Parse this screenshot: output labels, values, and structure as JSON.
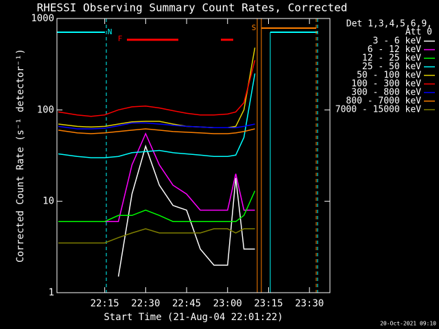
{
  "chart_data": {
    "type": "line",
    "title": "RHESSI Observing Summary Count Rates, Corrected",
    "x_label": "Start Time (21-Aug-04 22:01:22)",
    "y_label": "Corrected Count Rate (s⁻¹ detector⁻¹)",
    "legend_header": [
      "Det 1,3,4,5,6,9,",
      "Att 0"
    ],
    "footer": "20-Oct-2021 09:10",
    "log_scale": true,
    "annotations": [
      {
        "text": "N",
        "color": "#00ffff"
      },
      {
        "text": "F",
        "color": "#ff0000"
      },
      {
        "text": "S",
        "color": "#ff8000"
      }
    ],
    "xlim": [
      -2.5,
      97.5
    ],
    "xticks": [
      {
        "value": 15,
        "label": "22:15"
      },
      {
        "value": 30,
        "label": "22:30"
      },
      {
        "value": 45,
        "label": "22:45"
      },
      {
        "value": 60,
        "label": "23:00"
      },
      {
        "value": 75,
        "label": "23:15"
      },
      {
        "value": 90,
        "label": "23:30"
      }
    ],
    "ylim": [
      1,
      1000
    ],
    "yticks": [
      1,
      10,
      100,
      1000
    ],
    "x": [
      -2,
      5,
      10,
      15,
      20,
      25,
      30,
      35,
      40,
      45,
      50,
      55,
      60,
      63,
      66,
      70
    ],
    "series": [
      {
        "name": "3 - 6 keV",
        "color": "#ffffff",
        "values": [
          null,
          null,
          null,
          null,
          1.5,
          12,
          40,
          15,
          9,
          8,
          3,
          2,
          2,
          18,
          3,
          3
        ]
      },
      {
        "name": "6 - 12 keV",
        "color": "#ff00ff",
        "values": [
          6,
          6,
          6,
          6,
          6,
          25,
          55,
          25,
          15,
          12,
          8,
          8,
          8,
          20,
          8,
          8
        ]
      },
      {
        "name": "12 - 25 keV",
        "color": "#00ff00",
        "values": [
          6,
          6,
          6,
          6,
          7,
          7,
          8,
          7,
          6,
          6,
          6,
          6,
          6,
          6,
          7,
          13
        ]
      },
      {
        "name": "25 - 50 keV",
        "color": "#00ffff",
        "values": [
          33,
          31,
          30,
          30,
          31,
          34,
          35,
          36,
          34,
          33,
          32,
          31,
          31,
          32,
          50,
          250
        ]
      },
      {
        "name": "50 - 100 keV",
        "color": "#e0d000",
        "values": [
          70,
          66,
          65,
          66,
          70,
          74,
          75,
          75,
          70,
          66,
          65,
          64,
          64,
          66,
          100,
          480
        ]
      },
      {
        "name": "100 - 300 keV",
        "color": "#ff0000",
        "values": [
          95,
          88,
          85,
          88,
          100,
          108,
          110,
          105,
          98,
          92,
          88,
          88,
          90,
          95,
          120,
          350
        ]
      },
      {
        "name": "300 - 800 keV",
        "color": "#0000ff",
        "values": [
          66,
          62,
          62,
          63,
          67,
          72,
          72,
          70,
          68,
          66,
          65,
          64,
          64,
          64,
          66,
          70
        ]
      },
      {
        "name": "800 - 7000 keV",
        "color": "#ff8000",
        "values": [
          60,
          56,
          55,
          56,
          58,
          60,
          62,
          60,
          58,
          57,
          56,
          55,
          55,
          56,
          58,
          62
        ]
      },
      {
        "name": "7000 - 15000 keV",
        "color": "#808000",
        "values": [
          3.5,
          3.5,
          3.5,
          3.5,
          4,
          4.5,
          5,
          4.5,
          4.5,
          4.5,
          4.5,
          5,
          5,
          4.5,
          5,
          5
        ]
      }
    ]
  }
}
